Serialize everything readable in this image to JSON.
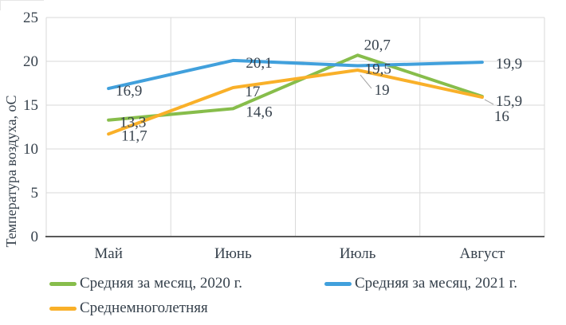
{
  "chart_data": {
    "type": "line",
    "title": "",
    "xlabel": "",
    "ylabel": "Температура воздуха, оС",
    "categories": [
      "Май",
      "Июнь",
      "Июль",
      "Август"
    ],
    "series": [
      {
        "name": "Средняя за месяц, 2020 г.",
        "color": "#87BD4B",
        "values": [
          13.3,
          14.6,
          20.7,
          16
        ],
        "point_labels": [
          "13,3",
          "14,6",
          "20,7",
          "16"
        ]
      },
      {
        "name": "Средняя за месяц, 2021 г.",
        "color": "#41A0DC",
        "values": [
          16.9,
          20.1,
          19.5,
          19.9
        ],
        "point_labels": [
          "16,9",
          "20,1",
          "19,5",
          "19,9"
        ]
      },
      {
        "name": "Среднемноголетняя",
        "color": "#F9B029",
        "values": [
          11.7,
          17,
          19,
          15.9
        ],
        "point_labels": [
          "11,7",
          "17",
          "19",
          "15,9"
        ]
      }
    ],
    "ylim": [
      0,
      25
    ],
    "yticks": [
      0,
      5,
      10,
      15,
      20,
      25
    ],
    "grid": true,
    "legend_position": "bottom",
    "layout": {
      "label_offsets": [
        [
          [
            14,
            9
          ],
          [
            16,
            10
          ],
          [
            8,
            -7
          ],
          [
            15,
            31
          ]
        ],
        [
          [
            9,
            9
          ],
          [
            16,
            9
          ],
          [
            9,
            10
          ],
          [
            17,
            8
          ]
        ],
        [
          [
            16,
            8
          ],
          [
            15,
            11
          ],
          [
            21,
            31
          ],
          [
            17,
            11
          ]
        ]
      ],
      "leader_lines": [
        [
          452,
          94,
          466,
          111
        ],
        [
          608,
          125,
          619,
          131
        ]
      ]
    }
  },
  "colors": {
    "background": "#FFFFFF",
    "grid": "#D9D9D9",
    "axis": "#595959",
    "text": "#36414C",
    "leader": "#A6A6A6"
  }
}
